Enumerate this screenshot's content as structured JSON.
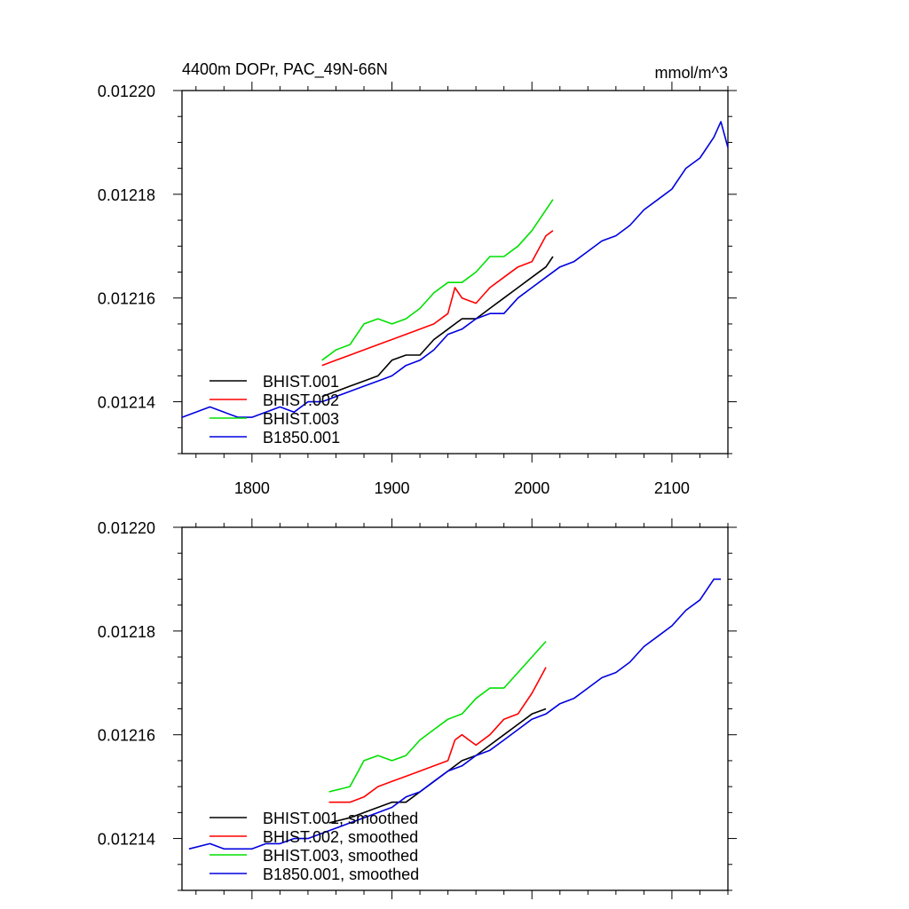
{
  "figure": {
    "title_left": "4400m DOPr, PAC_49N-66N",
    "title_right": "mmol/m^3"
  },
  "colors": {
    "BHIST.001": "#000000",
    "BHIST.002": "#ff0000",
    "BHIST.003": "#00e000",
    "B1850.001": "#0000e0"
  },
  "chart_data": [
    {
      "type": "line",
      "title": "4400m DOPr, PAC_49N-66N",
      "units_label": "mmol/m^3",
      "xlim": [
        1750,
        2140
      ],
      "ylim": [
        0.01213,
        0.0122
      ],
      "x_ticks": [
        1800,
        1900,
        2000,
        2100
      ],
      "x_tick_labels": [
        "1800",
        "1900",
        "2000",
        "2100"
      ],
      "y_ticks": [
        0.01214,
        0.01216,
        0.01218,
        0.0122
      ],
      "y_tick_labels": [
        "0.01214",
        "0.01216",
        "0.01218",
        "0.01220"
      ],
      "grid": false,
      "legend_position": "bottom-left",
      "series": [
        {
          "name": "BHIST.001",
          "x": [
            1850,
            1860,
            1870,
            1880,
            1890,
            1900,
            1910,
            1920,
            1930,
            1940,
            1950,
            1960,
            1970,
            1980,
            1990,
            2000,
            2010,
            2015
          ],
          "y": [
            0.012141,
            0.012142,
            0.012143,
            0.012144,
            0.012145,
            0.012148,
            0.012149,
            0.012149,
            0.012152,
            0.012154,
            0.012156,
            0.012156,
            0.012158,
            0.01216,
            0.012162,
            0.012164,
            0.012166,
            0.012168
          ]
        },
        {
          "name": "BHIST.002",
          "x": [
            1850,
            1860,
            1870,
            1880,
            1890,
            1900,
            1910,
            1920,
            1930,
            1940,
            1945,
            1950,
            1960,
            1970,
            1980,
            1990,
            2000,
            2010,
            2015
          ],
          "y": [
            0.012147,
            0.012148,
            0.012149,
            0.01215,
            0.012151,
            0.012152,
            0.012153,
            0.012154,
            0.012155,
            0.012157,
            0.012162,
            0.01216,
            0.012159,
            0.012162,
            0.012164,
            0.012166,
            0.012167,
            0.012172,
            0.012173
          ]
        },
        {
          "name": "BHIST.003",
          "x": [
            1850,
            1860,
            1870,
            1880,
            1890,
            1900,
            1910,
            1920,
            1930,
            1940,
            1950,
            1960,
            1970,
            1980,
            1990,
            2000,
            2010,
            2015
          ],
          "y": [
            0.012148,
            0.01215,
            0.012151,
            0.012155,
            0.012156,
            0.012155,
            0.012156,
            0.012158,
            0.012161,
            0.012163,
            0.012163,
            0.012165,
            0.012168,
            0.012168,
            0.01217,
            0.012173,
            0.012177,
            0.012179
          ]
        },
        {
          "name": "B1850.001",
          "x": [
            1750,
            1760,
            1770,
            1780,
            1790,
            1800,
            1810,
            1820,
            1830,
            1840,
            1850,
            1860,
            1870,
            1880,
            1890,
            1900,
            1910,
            1920,
            1930,
            1940,
            1950,
            1960,
            1970,
            1980,
            1990,
            2000,
            2010,
            2020,
            2030,
            2040,
            2050,
            2060,
            2070,
            2080,
            2090,
            2100,
            2110,
            2120,
            2130,
            2135,
            2140
          ],
          "y": [
            0.012137,
            0.012138,
            0.012139,
            0.012138,
            0.012137,
            0.012137,
            0.012138,
            0.012139,
            0.012138,
            0.01214,
            0.01214,
            0.012141,
            0.012142,
            0.012143,
            0.012144,
            0.012145,
            0.012147,
            0.012148,
            0.01215,
            0.012153,
            0.012154,
            0.012156,
            0.012157,
            0.012157,
            0.01216,
            0.012162,
            0.012164,
            0.012166,
            0.012167,
            0.012169,
            0.012171,
            0.012172,
            0.012174,
            0.012177,
            0.012179,
            0.012181,
            0.012185,
            0.012187,
            0.012191,
            0.012194,
            0.012189
          ]
        }
      ],
      "legend": [
        "BHIST.001",
        "BHIST.002",
        "BHIST.003",
        "B1850.001"
      ]
    },
    {
      "type": "line",
      "xlim": [
        1750,
        2140
      ],
      "ylim": [
        0.01213,
        0.0122
      ],
      "x_ticks": [
        1800,
        1900,
        2000,
        2100
      ],
      "x_tick_labels": [],
      "y_ticks": [
        0.01214,
        0.01216,
        0.01218,
        0.0122
      ],
      "y_tick_labels": [
        "0.01214",
        "0.01216",
        "0.01218",
        "0.01220"
      ],
      "grid": false,
      "legend_position": "bottom-left",
      "series": [
        {
          "name": "BHIST.001, smoothed",
          "x": [
            1855,
            1870,
            1880,
            1890,
            1900,
            1910,
            1920,
            1930,
            1940,
            1950,
            1960,
            1970,
            1980,
            1990,
            2000,
            2010
          ],
          "y": [
            0.012143,
            0.012144,
            0.012145,
            0.012146,
            0.012147,
            0.012147,
            0.012149,
            0.012151,
            0.012153,
            0.012155,
            0.012156,
            0.012158,
            0.01216,
            0.012162,
            0.012164,
            0.012165
          ]
        },
        {
          "name": "BHIST.002, smoothed",
          "x": [
            1855,
            1870,
            1880,
            1890,
            1900,
            1910,
            1920,
            1930,
            1940,
            1945,
            1950,
            1955,
            1960,
            1970,
            1980,
            1990,
            2000,
            2010
          ],
          "y": [
            0.012147,
            0.012147,
            0.012148,
            0.01215,
            0.012151,
            0.012152,
            0.012153,
            0.012154,
            0.012155,
            0.012159,
            0.01216,
            0.012159,
            0.012158,
            0.01216,
            0.012163,
            0.012164,
            0.012168,
            0.012173
          ]
        },
        {
          "name": "BHIST.003, smoothed",
          "x": [
            1855,
            1870,
            1880,
            1890,
            1900,
            1910,
            1920,
            1930,
            1940,
            1950,
            1960,
            1970,
            1980,
            1990,
            2000,
            2010
          ],
          "y": [
            0.012149,
            0.01215,
            0.012155,
            0.012156,
            0.012155,
            0.012156,
            0.012159,
            0.012161,
            0.012163,
            0.012164,
            0.012167,
            0.012169,
            0.012169,
            0.012172,
            0.012175,
            0.012178
          ]
        },
        {
          "name": "B1850.001, smoothed",
          "x": [
            1755,
            1770,
            1780,
            1790,
            1800,
            1810,
            1820,
            1830,
            1840,
            1850,
            1860,
            1870,
            1880,
            1890,
            1900,
            1910,
            1920,
            1930,
            1940,
            1950,
            1960,
            1970,
            1980,
            1990,
            2000,
            2010,
            2020,
            2030,
            2040,
            2050,
            2060,
            2070,
            2080,
            2090,
            2100,
            2110,
            2120,
            2130,
            2135
          ],
          "y": [
            0.012138,
            0.012139,
            0.012138,
            0.012138,
            0.012138,
            0.012139,
            0.012139,
            0.01214,
            0.01214,
            0.012141,
            0.012142,
            0.012143,
            0.012144,
            0.012145,
            0.012146,
            0.012148,
            0.012149,
            0.012151,
            0.012153,
            0.012154,
            0.012156,
            0.012157,
            0.012159,
            0.012161,
            0.012163,
            0.012164,
            0.012166,
            0.012167,
            0.012169,
            0.012171,
            0.012172,
            0.012174,
            0.012177,
            0.012179,
            0.012181,
            0.012184,
            0.012186,
            0.01219,
            0.01219
          ]
        }
      ],
      "legend": [
        "BHIST.001, smoothed",
        "BHIST.002, smoothed",
        "BHIST.003, smoothed",
        "B1850.001, smoothed"
      ]
    }
  ]
}
